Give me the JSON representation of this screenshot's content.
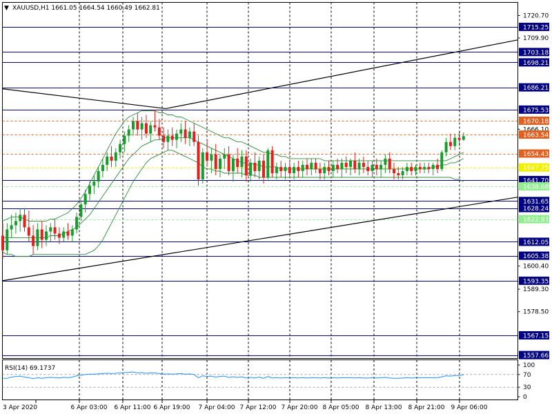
{
  "window": {
    "symbol_line": "XAUUSD,H1  1661.05 1664.54 1660.49 1662.81",
    "collapse_glyph": "▼"
  },
  "colors": {
    "background": "#ffffff",
    "axis": "#000000",
    "grid": "#000000",
    "bull": "#1a9b2c",
    "bear": "#e0201a",
    "bands": "#2e8b3a",
    "level_line": "#000080",
    "level_tag": "#000080",
    "dashed_line": "#e06020",
    "yellow_line": "#f0f000",
    "light_green_line": "#90ee90",
    "trend_line": "#000000",
    "rsi_line": "#1e90ff",
    "rsi_levels": "#a0a0a0"
  },
  "chart_data": {
    "type": "candlestick",
    "symbol": "XAUUSD",
    "timeframe": "H1",
    "ylim": [
      1553.5,
      1725.4
    ],
    "y_tick_labels": [
      "1720.70",
      "1709.90",
      "1666.10",
      "1600.40",
      "1589.30",
      "1578.50"
    ],
    "x_tick_labels": [
      "3 Apr 2020",
      "6 Apr 03:00",
      "6 Apr 11:00",
      "6 Apr 19:00",
      "7 Apr 04:00",
      "7 Apr 12:00",
      "7 Apr 20:00",
      "8 Apr 05:00",
      "8 Apr 13:00",
      "8 Apr 21:00",
      "9 Apr 06:00"
    ],
    "levels": [
      {
        "price": 1715.25,
        "label": "1715.25",
        "style": "solid"
      },
      {
        "price": 1703.18,
        "label": "1703.18",
        "style": "solid"
      },
      {
        "price": 1698.21,
        "label": "1698.21",
        "style": "solid"
      },
      {
        "price": 1686.21,
        "label": "1686.21",
        "style": "solid"
      },
      {
        "price": 1675.53,
        "label": "1675.53",
        "style": "solid"
      },
      {
        "price": 1670.18,
        "label": "1670.18",
        "style": "dashed"
      },
      {
        "price": 1663.54,
        "label": "1663.54",
        "style": "dashed"
      },
      {
        "price": 1654.43,
        "label": "1654.43",
        "style": "dashed"
      },
      {
        "price": 1647.75,
        "label": "1647.75",
        "style": "yellow"
      },
      {
        "price": 1641.7,
        "label": "1641.70",
        "style": "solid"
      },
      {
        "price": 1638.68,
        "label": "1638.68",
        "style": "lightgreen"
      },
      {
        "price": 1631.65,
        "label": "1631.65",
        "style": "solid"
      },
      {
        "price": 1628.24,
        "label": "1628.24",
        "style": "solid"
      },
      {
        "price": 1622.93,
        "label": "1622.93",
        "style": "lightgreen"
      },
      {
        "price": 1612.05,
        "label": "1612.05",
        "style": "solid"
      },
      {
        "price": 1605.38,
        "label": "1605.38",
        "style": "solid"
      },
      {
        "price": 1593.35,
        "label": "1593.35",
        "style": "solid"
      },
      {
        "price": 1567.15,
        "label": "1567.15",
        "style": "solid"
      },
      {
        "price": 1557.66,
        "label": "1557.66",
        "style": "solid"
      }
    ],
    "trendlines": [
      {
        "bar_from": 0,
        "price_from": 1685.5,
        "bar_to": 37.5,
        "price_to": 1676.0
      },
      {
        "bar_from": 37.5,
        "price_from": 1676.0,
        "bar_to": 120.0,
        "price_to": 1709.0
      },
      {
        "bar_from": 0,
        "price_from": 1593.4,
        "bar_to": 120.0,
        "price_to": 1633.5
      }
    ],
    "candles": [
      [
        1615.0,
        1621.0,
        1604.0,
        1608.0
      ],
      [
        1608.0,
        1621.0,
        1606.0,
        1618.0
      ],
      [
        1618.0,
        1625.0,
        1614.0,
        1620.0
      ],
      [
        1620.0,
        1626.0,
        1616.0,
        1622.0
      ],
      [
        1622.0,
        1628.0,
        1617.0,
        1625.0
      ],
      [
        1625.0,
        1628.0,
        1617.0,
        1619.0
      ],
      [
        1619.0,
        1627.0,
        1612.0,
        1615.0
      ],
      [
        1615.0,
        1620.0,
        1606.0,
        1610.0
      ],
      [
        1610.0,
        1621.0,
        1608.0,
        1618.0
      ],
      [
        1618.0,
        1622.0,
        1609.0,
        1613.0
      ],
      [
        1613.0,
        1620.0,
        1610.0,
        1617.0
      ],
      [
        1617.0,
        1621.0,
        1612.0,
        1619.0
      ],
      [
        1619.0,
        1623.0,
        1613.0,
        1616.0
      ],
      [
        1616.0,
        1619.0,
        1611.0,
        1614.0
      ],
      [
        1614.0,
        1619.0,
        1612.0,
        1617.0
      ],
      [
        1617.0,
        1621.0,
        1613.0,
        1615.0
      ],
      [
        1615.0,
        1620.0,
        1612.0,
        1618.0
      ],
      [
        1618.0,
        1626.0,
        1616.0,
        1624.0
      ],
      [
        1624.0,
        1632.0,
        1622.0,
        1630.0
      ],
      [
        1630.0,
        1637.0,
        1626.0,
        1635.0
      ],
      [
        1635.0,
        1641.0,
        1632.0,
        1639.0
      ],
      [
        1639.0,
        1644.0,
        1635.0,
        1641.0
      ],
      [
        1641.0,
        1648.0,
        1638.0,
        1646.0
      ],
      [
        1646.0,
        1652.0,
        1643.0,
        1649.0
      ],
      [
        1649.0,
        1655.0,
        1646.0,
        1653.0
      ],
      [
        1653.0,
        1658.0,
        1648.0,
        1651.0
      ],
      [
        1651.0,
        1657.0,
        1648.0,
        1655.0
      ],
      [
        1655.0,
        1661.0,
        1652.0,
        1659.0
      ],
      [
        1659.0,
        1665.0,
        1655.0,
        1663.0
      ],
      [
        1663.0,
        1668.0,
        1660.0,
        1666.0
      ],
      [
        1666.0,
        1672.0,
        1663.0,
        1670.0
      ],
      [
        1670.0,
        1674.0,
        1663.0,
        1666.0
      ],
      [
        1666.0,
        1672.0,
        1661.0,
        1669.0
      ],
      [
        1669.0,
        1673.0,
        1662.0,
        1664.0
      ],
      [
        1664.0,
        1670.0,
        1660.0,
        1668.0
      ],
      [
        1668.0,
        1675.5,
        1665.0,
        1667.0
      ],
      [
        1667.0,
        1671.0,
        1661.0,
        1663.0
      ],
      [
        1663.0,
        1667.0,
        1657.0,
        1660.0
      ],
      [
        1660.0,
        1666.0,
        1656.0,
        1663.0
      ],
      [
        1663.0,
        1667.0,
        1658.0,
        1661.0
      ],
      [
        1661.0,
        1666.0,
        1657.0,
        1664.0
      ],
      [
        1664.0,
        1669.0,
        1660.0,
        1666.0
      ],
      [
        1666.0,
        1670.0,
        1659.0,
        1662.0
      ],
      [
        1662.0,
        1667.0,
        1658.0,
        1665.0
      ],
      [
        1665.0,
        1669.0,
        1658.0,
        1660.0
      ],
      [
        1660.0,
        1663.0,
        1639.0,
        1642.0
      ],
      [
        1642.0,
        1657.0,
        1640.0,
        1655.0
      ],
      [
        1655.0,
        1661.0,
        1648.0,
        1651.0
      ],
      [
        1651.0,
        1657.0,
        1645.0,
        1654.0
      ],
      [
        1654.0,
        1659.0,
        1644.0,
        1647.0
      ],
      [
        1647.0,
        1654.0,
        1643.0,
        1652.0
      ],
      [
        1652.0,
        1657.0,
        1647.0,
        1654.0
      ],
      [
        1654.0,
        1658.0,
        1644.0,
        1646.0
      ],
      [
        1646.0,
        1654.0,
        1641.0,
        1652.0
      ],
      [
        1652.0,
        1657.0,
        1645.0,
        1648.0
      ],
      [
        1648.0,
        1656.0,
        1643.0,
        1653.0
      ],
      [
        1653.0,
        1656.0,
        1641.0,
        1644.0
      ],
      [
        1644.0,
        1652.0,
        1641.0,
        1650.0
      ],
      [
        1650.0,
        1655.0,
        1643.0,
        1646.0
      ],
      [
        1646.0,
        1653.0,
        1642.0,
        1651.0
      ],
      [
        1651.0,
        1654.0,
        1640.0,
        1643.0
      ],
      [
        1643.0,
        1657.0,
        1642.0,
        1656.0
      ],
      [
        1656.0,
        1658.0,
        1643.0,
        1645.0
      ],
      [
        1645.0,
        1650.0,
        1642.0,
        1648.0
      ],
      [
        1648.0,
        1651.0,
        1643.0,
        1646.0
      ],
      [
        1646.0,
        1650.0,
        1642.0,
        1648.0
      ],
      [
        1648.0,
        1651.0,
        1643.0,
        1645.0
      ],
      [
        1645.0,
        1650.0,
        1642.0,
        1648.0
      ],
      [
        1648.0,
        1651.0,
        1643.0,
        1646.0
      ],
      [
        1646.0,
        1651.0,
        1643.0,
        1649.0
      ],
      [
        1649.0,
        1652.0,
        1644.0,
        1647.0
      ],
      [
        1647.0,
        1652.0,
        1644.0,
        1650.0
      ],
      [
        1650.0,
        1652.0,
        1645.0,
        1647.0
      ],
      [
        1647.0,
        1650.0,
        1642.0,
        1645.0
      ],
      [
        1645.0,
        1650.0,
        1642.0,
        1648.0
      ],
      [
        1648.0,
        1651.0,
        1644.0,
        1646.0
      ],
      [
        1646.0,
        1651.0,
        1643.0,
        1649.0
      ],
      [
        1649.0,
        1652.0,
        1645.0,
        1647.0
      ],
      [
        1647.0,
        1652.0,
        1643.0,
        1650.0
      ],
      [
        1650.0,
        1653.0,
        1645.0,
        1648.0
      ],
      [
        1648.0,
        1652.0,
        1644.0,
        1651.0
      ],
      [
        1651.0,
        1655.0,
        1645.0,
        1647.0
      ],
      [
        1647.0,
        1652.0,
        1644.0,
        1650.0
      ],
      [
        1650.0,
        1653.0,
        1645.0,
        1648.0
      ],
      [
        1648.0,
        1651.0,
        1644.0,
        1646.0
      ],
      [
        1646.0,
        1651.0,
        1643.0,
        1649.0
      ],
      [
        1649.0,
        1652.0,
        1644.0,
        1647.0
      ],
      [
        1647.0,
        1651.0,
        1643.0,
        1649.0
      ],
      [
        1649.0,
        1654.0,
        1645.0,
        1652.0
      ],
      [
        1652.0,
        1655.0,
        1645.0,
        1647.0
      ],
      [
        1647.0,
        1650.0,
        1642.0,
        1645.0
      ],
      [
        1645.0,
        1648.0,
        1642.0,
        1644.0
      ],
      [
        1644.0,
        1648.0,
        1642.0,
        1646.0
      ],
      [
        1646.0,
        1650.0,
        1644.0,
        1648.0
      ],
      [
        1648.0,
        1650.0,
        1644.0,
        1646.0
      ],
      [
        1646.0,
        1649.0,
        1644.0,
        1648.0
      ],
      [
        1648.0,
        1650.0,
        1645.0,
        1647.0
      ],
      [
        1647.0,
        1650.0,
        1645.0,
        1648.0
      ],
      [
        1648.0,
        1650.0,
        1645.0,
        1647.0
      ],
      [
        1647.0,
        1650.0,
        1644.0,
        1649.0
      ],
      [
        1649.0,
        1652.0,
        1645.0,
        1647.0
      ],
      [
        1647.0,
        1656.0,
        1646.0,
        1655.0
      ],
      [
        1655.0,
        1662.0,
        1653.0,
        1660.0
      ],
      [
        1660.0,
        1664.0,
        1656.0,
        1658.0
      ],
      [
        1658.0,
        1664.0,
        1656.0,
        1662.0
      ],
      [
        1662.0,
        1665.0,
        1658.0,
        1661.0
      ],
      [
        1661.05,
        1664.54,
        1660.49,
        1662.81
      ]
    ],
    "bollinger": {
      "upper": [
        1622,
        1623,
        1624,
        1624,
        1624,
        1623,
        1622,
        1622,
        1622,
        1622,
        1622,
        1623,
        1623,
        1624,
        1625,
        1626,
        1628,
        1630,
        1633,
        1636,
        1640,
        1644,
        1648,
        1652,
        1656,
        1660,
        1664,
        1667,
        1670,
        1672,
        1673,
        1674,
        1675,
        1675,
        1675,
        1675,
        1674,
        1674,
        1673,
        1673,
        1672,
        1672,
        1671,
        1670,
        1669,
        1668,
        1667,
        1666,
        1665,
        1664,
        1663,
        1662,
        1662,
        1661,
        1660,
        1660,
        1659,
        1658,
        1657,
        1656,
        1655,
        1655,
        1654,
        1654,
        1653,
        1653,
        1652,
        1652,
        1652,
        1652,
        1652,
        1652,
        1652,
        1652,
        1651,
        1651,
        1651,
        1651,
        1651,
        1651,
        1651,
        1651,
        1651,
        1651,
        1651,
        1651,
        1651,
        1651,
        1651,
        1651,
        1651,
        1651,
        1651,
        1651,
        1651,
        1651,
        1651,
        1651,
        1651,
        1651,
        1651,
        1651,
        1651,
        1652,
        1653,
        1654,
        1655
      ],
      "mid": [
        1614,
        1614,
        1614,
        1614,
        1614,
        1614,
        1614,
        1614,
        1614,
        1614,
        1614,
        1615,
        1615,
        1615,
        1616,
        1617,
        1618,
        1619,
        1621,
        1623,
        1625,
        1628,
        1631,
        1634,
        1637,
        1640,
        1643,
        1646,
        1649,
        1652,
        1654,
        1656,
        1658,
        1659,
        1660,
        1661,
        1661,
        1662,
        1662,
        1662,
        1662,
        1662,
        1662,
        1662,
        1661,
        1660,
        1659,
        1658,
        1657,
        1656,
        1655,
        1654,
        1653,
        1652,
        1651,
        1650,
        1650,
        1650,
        1649,
        1649,
        1648,
        1648,
        1648,
        1648,
        1647,
        1647,
        1647,
        1647,
        1647,
        1647,
        1647,
        1647,
        1647,
        1647,
        1647,
        1647,
        1647,
        1647,
        1647,
        1647,
        1647,
        1647,
        1647,
        1647,
        1647,
        1647,
        1647,
        1647,
        1647,
        1647,
        1647,
        1647,
        1647,
        1647,
        1647,
        1647,
        1647,
        1647,
        1647,
        1648,
        1648,
        1649,
        1649,
        1650,
        1650,
        1651,
        1652
      ],
      "lower": [
        1607,
        1606,
        1606,
        1605,
        1605,
        1605,
        1605,
        1606,
        1606,
        1606,
        1606,
        1606,
        1606,
        1606,
        1606,
        1606,
        1606,
        1606,
        1606,
        1606,
        1607,
        1608,
        1610,
        1613,
        1617,
        1621,
        1625,
        1629,
        1633,
        1637,
        1641,
        1644,
        1647,
        1650,
        1652,
        1653,
        1654,
        1655,
        1656,
        1656,
        1655,
        1654,
        1653,
        1652,
        1651,
        1650,
        1648,
        1647,
        1647,
        1646,
        1646,
        1645,
        1645,
        1645,
        1645,
        1645,
        1644,
        1644,
        1644,
        1643,
        1643,
        1643,
        1643,
        1643,
        1643,
        1643,
        1643,
        1643,
        1643,
        1643,
        1643,
        1643,
        1643,
        1643,
        1643,
        1643,
        1643,
        1643,
        1643,
        1643,
        1643,
        1643,
        1643,
        1643,
        1643,
        1643,
        1643,
        1643,
        1643,
        1643,
        1643,
        1643,
        1643,
        1643,
        1643,
        1643,
        1643,
        1643,
        1643,
        1643,
        1643,
        1643,
        1643,
        1643,
        1642,
        1642,
        1641
      ]
    },
    "rsi": {
      "label": "RSI(14) 69.1737",
      "ylim": [
        0,
        100
      ],
      "ticks": [
        "100",
        "70",
        "30",
        "0"
      ],
      "levels": [
        70,
        30
      ],
      "values": [
        58,
        58,
        62,
        64,
        65,
        62,
        60,
        57,
        60,
        58,
        60,
        61,
        60,
        59,
        61,
        60,
        62,
        66,
        68,
        70,
        71,
        71,
        72,
        73,
        74,
        73,
        74,
        75,
        76,
        77,
        78,
        75,
        76,
        74,
        75,
        75,
        73,
        71,
        72,
        71,
        72,
        73,
        71,
        72,
        70,
        60,
        66,
        64,
        65,
        62,
        64,
        65,
        61,
        63,
        61,
        63,
        59,
        61,
        59,
        62,
        58,
        64,
        59,
        60,
        59,
        60,
        59,
        60,
        59,
        60,
        59,
        60,
        60,
        59,
        60,
        59,
        60,
        59,
        60,
        60,
        60,
        59,
        60,
        59,
        59,
        60,
        59,
        60,
        61,
        59,
        58,
        58,
        59,
        60,
        59,
        60,
        60,
        60,
        60,
        60,
        60,
        63,
        66,
        65,
        67,
        67,
        69.17
      ]
    }
  }
}
